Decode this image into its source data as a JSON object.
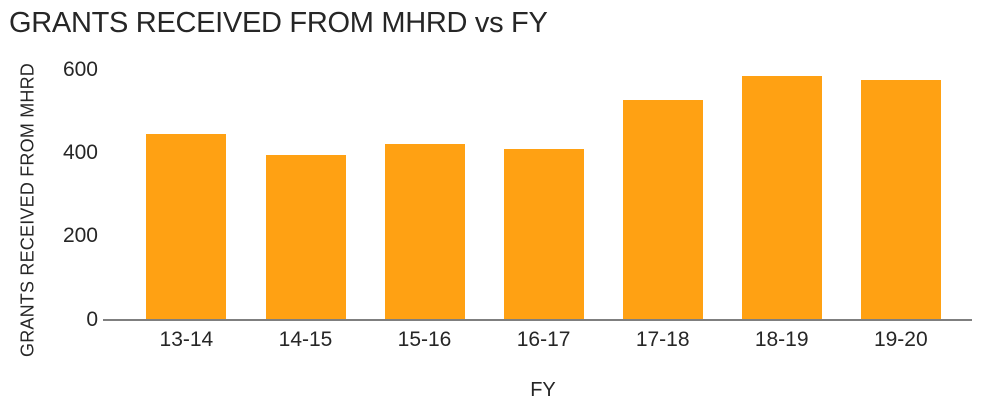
{
  "chart_data": {
    "type": "bar",
    "title": "GRANTS RECEIVED FROM MHRD vs FY",
    "xlabel": "FY",
    "ylabel": "GRANTS RECEIVED FROM MHRD",
    "categories": [
      "13-14",
      "14-15",
      "15-16",
      "16-17",
      "17-18",
      "18-19",
      "19-20"
    ],
    "values": [
      445,
      394,
      420,
      410,
      526,
      584,
      574
    ],
    "ylim": [
      0,
      600
    ],
    "yticks": [
      0,
      200,
      400,
      600
    ],
    "grid": false,
    "legend": "none",
    "bar_color": "#FFA113",
    "axis_line_color": "#7F7F7F",
    "text_color": "#262626",
    "background_color": "#FFFFFF"
  }
}
